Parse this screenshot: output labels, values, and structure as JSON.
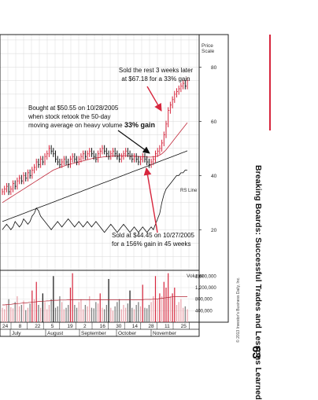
{
  "page": {
    "side_title": "Breaking Boards: Successful Trades and Lessons Learned",
    "page_number": "63",
    "copyright": "© 2013 Investor's Business Daily, Inc.",
    "accent_color": "#d7263d"
  },
  "chart_data": {
    "type": "line",
    "price_axis": {
      "title": "Price\nScale",
      "ticks": [
        20,
        40,
        60,
        80
      ],
      "ylim": [
        5,
        92
      ]
    },
    "volume_axis": {
      "title": "Volume",
      "ticks": [
        "1,600,000",
        "1,200,000",
        "800,000",
        "400,000"
      ],
      "tick_values": [
        1600000,
        1200000,
        800000,
        400000
      ],
      "ylim": [
        0,
        1800000
      ]
    },
    "x_ticks": [
      "24",
      "8",
      "22",
      "5",
      "19",
      "2",
      "16",
      "30",
      "14",
      "28",
      "11",
      "25"
    ],
    "months": [
      "July",
      "August",
      "September",
      "October",
      "November"
    ],
    "rs_label": "RS Line",
    "gain_label": "33% gain",
    "annotations": {
      "sell_rest": [
        "Sold the rest 3 weeks later",
        "at $67.18 for a 33% gain"
      ],
      "bought": [
        "Bought at $50.55 on 10/28/2005",
        "when stock retook the 50-day",
        "moving average on heavy volume"
      ],
      "sold_first": [
        "Sold at $44.45 on 10/27/2005",
        "for a 156% gain in 45 weeks"
      ]
    },
    "series": [
      {
        "name": "price",
        "values": [
          34,
          35,
          36,
          34,
          35,
          37,
          36,
          38,
          39,
          38,
          40,
          39,
          41,
          40,
          42,
          43,
          45,
          44,
          46,
          45,
          47,
          48,
          50,
          49,
          48,
          46,
          45,
          44,
          45,
          46,
          45,
          44,
          46,
          47,
          46,
          45,
          46,
          47,
          48,
          47,
          48,
          49,
          48,
          47,
          46,
          48,
          49,
          50,
          49,
          48,
          47,
          48,
          49,
          48,
          47,
          46,
          47,
          48,
          49,
          48,
          47,
          46,
          47,
          46,
          45,
          46,
          47,
          46,
          45,
          44,
          45,
          46,
          48,
          49,
          50,
          52,
          55,
          59,
          64,
          66,
          68,
          70,
          71,
          72,
          73,
          74,
          73,
          75
        ]
      },
      {
        "name": "moving_average",
        "values": [
          30,
          30.5,
          31,
          31.5,
          32,
          32.5,
          33,
          33.5,
          34,
          34.5,
          35,
          35.5,
          36,
          36.5,
          37,
          37.5,
          38,
          38.5,
          39,
          39.5,
          40,
          40.5,
          41,
          41.5,
          42,
          42.3,
          42.6,
          42.9,
          43.2,
          43.5,
          43.8,
          44,
          44.2,
          44.4,
          44.6,
          44.8,
          45,
          45.2,
          45.4,
          45.6,
          45.8,
          46,
          46.2,
          46.4,
          46.5,
          46.6,
          46.7,
          46.8,
          46.9,
          47,
          47,
          47.1,
          47.2,
          47.2,
          47.3,
          47.3,
          47.3,
          47.3,
          47.3,
          47.3,
          47.2,
          47.2,
          47.1,
          47.1,
          47,
          47,
          46.9,
          46.9,
          46.8,
          46.8,
          46.8,
          46.9,
          47,
          47.2,
          47.5,
          48,
          48.7,
          49.5,
          50.5,
          51.5,
          52.5,
          53.5,
          54.5,
          55.5,
          56.5,
          57.5,
          58.5,
          59.5
        ]
      },
      {
        "name": "rs_line",
        "values": [
          23,
          23.3,
          23.6,
          23.9,
          24.2,
          24.5,
          24.8,
          25.1,
          25.4,
          25.7,
          26,
          26.3,
          26.6,
          26.9,
          27.2,
          27.5,
          27.8,
          28.1,
          28.4,
          28.7,
          29,
          29.3,
          29.6,
          29.9,
          30.2,
          30.5,
          30.8,
          31.1,
          31.4,
          31.7,
          32,
          32.3,
          32.6,
          32.9,
          33.2,
          33.5,
          33.8,
          34.1,
          34.4,
          34.7,
          35,
          35.3,
          35.6,
          35.9,
          36.2,
          36.5,
          36.8,
          37.1,
          37.4,
          37.7,
          38,
          38.3,
          38.6,
          38.9,
          39.2,
          39.5,
          39.8,
          40.1,
          40.4,
          40.7,
          41,
          41.3,
          41.6,
          41.9,
          42.2,
          42.5,
          42.8,
          43.1,
          43.4,
          43.7,
          44,
          44.3,
          44.6,
          44.9,
          45.2,
          45.5,
          45.8,
          46.1,
          46.4,
          46.7,
          47,
          47.3,
          47.6,
          47.9,
          48.2,
          48.5,
          48.8,
          49.1
        ]
      },
      {
        "name": "relative_strength",
        "values": [
          20,
          21,
          22,
          21,
          20,
          21,
          23,
          22,
          21,
          22,
          24,
          23,
          22,
          23,
          25,
          26,
          28,
          27,
          25,
          24,
          23,
          22,
          21,
          20,
          21,
          22,
          23,
          22,
          21,
          22,
          23,
          24,
          23,
          22,
          21,
          22,
          23,
          22,
          21,
          22,
          23,
          22,
          21,
          22,
          23,
          22,
          21,
          20,
          19,
          20,
          21,
          22,
          21,
          20,
          19,
          20,
          21,
          22,
          21,
          20,
          19,
          20,
          21,
          20,
          19,
          20,
          21,
          20,
          19,
          20,
          21,
          20,
          22,
          24,
          26,
          30,
          33,
          35,
          36,
          37,
          38,
          39,
          40,
          40,
          41,
          41,
          42,
          42
        ]
      },
      {
        "name": "volume",
        "values": [
          500000,
          450000,
          600000,
          800000,
          520000,
          480000,
          700000,
          900000,
          550000,
          600000,
          750000,
          420000,
          500000,
          650000,
          1100000,
          800000,
          1400000,
          600000,
          500000,
          1000000,
          700000,
          450000,
          600000,
          800000,
          1600000,
          500000,
          550000,
          900000,
          700000,
          450000,
          500000,
          600000,
          1200000,
          1700000,
          600000,
          500000,
          700000,
          800000,
          450000,
          600000,
          550000,
          900000,
          500000,
          480000,
          700000,
          650000,
          1000000,
          500000,
          450000,
          600000,
          1500000,
          500000,
          400000,
          550000,
          700000,
          800000,
          450000,
          600000,
          500000,
          650000,
          1100000,
          500000,
          450000,
          600000,
          700000,
          550000,
          1300000,
          500000,
          480000,
          600000,
          700000,
          900000,
          1600000,
          800000,
          1000000,
          900000,
          1400000,
          1200000,
          1700000,
          900000,
          1000000,
          1200000,
          600000,
          700000,
          800000,
          500000,
          550000,
          450000
        ]
      },
      {
        "name": "volume_average",
        "values": [
          600000,
          600000,
          610000,
          620000,
          620000,
          630000,
          640000,
          650000,
          650000,
          660000,
          670000,
          670000,
          680000,
          690000,
          700000,
          700000,
          710000,
          720000,
          720000,
          730000,
          730000,
          740000,
          740000,
          750000,
          760000,
          760000,
          760000,
          770000,
          770000,
          770000,
          770000,
          780000,
          780000,
          780000,
          780000,
          780000,
          780000,
          780000,
          780000,
          780000,
          780000,
          780000,
          780000,
          780000,
          780000,
          780000,
          780000,
          780000,
          780000,
          780000,
          780000,
          780000,
          780000,
          780000,
          780000,
          780000,
          780000,
          780000,
          780000,
          780000,
          780000,
          780000,
          780000,
          780000,
          780000,
          780000,
          780000,
          790000,
          790000,
          790000,
          790000,
          800000,
          800000,
          810000,
          820000,
          830000,
          840000,
          850000,
          860000,
          870000,
          880000,
          880000,
          890000,
          890000,
          890000,
          890000,
          890000,
          890000
        ]
      }
    ]
  }
}
